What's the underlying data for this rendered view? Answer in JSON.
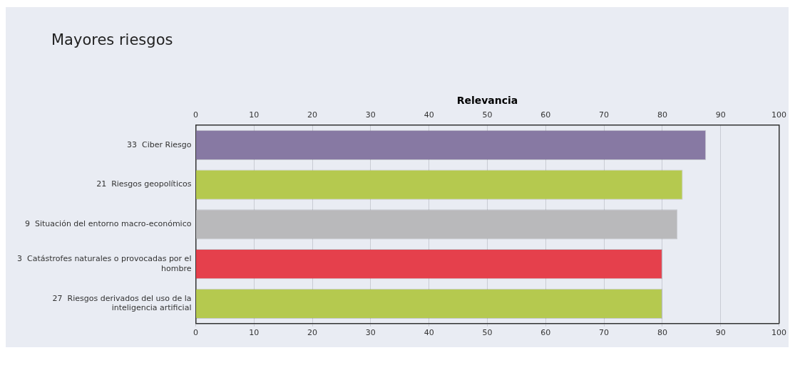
{
  "chart_data": {
    "type": "bar",
    "orientation": "horizontal",
    "title": "Mayores riesgos",
    "x2label": "Relevancia",
    "categories": [
      "33  Ciber Riesgo",
      "21  Riesgos geopolíticos",
      "9  Situación del entorno macro-económico",
      "3  Catástrofes naturales o provocadas por el hombre",
      "27  Riesgos derivados del uso de la inteligencia artificial"
    ],
    "values": [
      87.5,
      83.5,
      82.6,
      80,
      80
    ],
    "colors": [
      "#8779a3",
      "#b5c94f",
      "#b9b9bb",
      "#e5404c",
      "#b5c94f"
    ],
    "xlim": [
      0,
      100
    ],
    "xticks": [
      0,
      10,
      20,
      30,
      40,
      50,
      60,
      70,
      80,
      90,
      100
    ],
    "x2lim": [
      0,
      100
    ],
    "x2ticks": [
      0,
      10,
      20,
      30,
      40,
      50,
      60,
      70,
      80,
      90,
      100
    ],
    "grid": "x",
    "legend": false
  }
}
